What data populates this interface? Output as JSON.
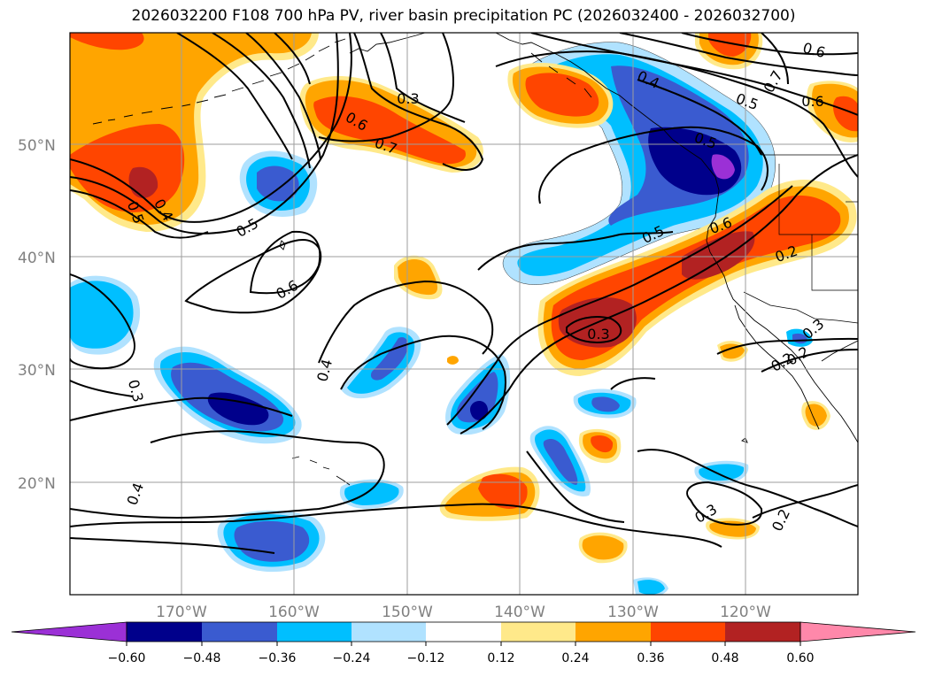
{
  "title": "2026032200 F108 700 hPa PV, river basin precipitation PC (2026032400 - 2026032700)",
  "lat_labels": [
    "50°N",
    "40°N",
    "30°N",
    "20°N"
  ],
  "lon_labels": [
    "170°W",
    "160°W",
    "150°W",
    "140°W",
    "130°W",
    "120°W"
  ],
  "contour_labels": [
    "0.3",
    "0.6",
    "0.7",
    "0.4",
    "0.5",
    "0.6",
    "0.5",
    "0.7",
    "0.6",
    "0.5",
    "0.4",
    "0.5",
    "0.6",
    "0.5",
    "0.6",
    "0.2",
    "0.3",
    "0.4",
    "0.3",
    "0.4",
    "0.3",
    "0.3",
    "0.2",
    "0.2",
    "0.2"
  ],
  "colorbar": {
    "ticks": [
      "−0.60",
      "−0.48",
      "−0.36",
      "−0.24",
      "−0.12",
      "0.12",
      "0.24",
      "0.36",
      "0.48",
      "0.60"
    ],
    "colors": [
      "#9b30d6",
      "#00008b",
      "#3a5bd0",
      "#00bfff",
      "#b0e2ff",
      "#ffffff",
      "#ffe98a",
      "#ffa500",
      "#ff4500",
      "#b22222",
      "#ff88aa"
    ]
  },
  "palette": {
    "neg_extreme": "#9b30d6",
    "neg_060": "#00008b",
    "neg_048": "#3a5bd0",
    "neg_036": "#00bfff",
    "neg_024": "#b0e2ff",
    "pos_012": "#ffe98a",
    "pos_024": "#ffa500",
    "pos_036": "#ff4500",
    "pos_048": "#b22222",
    "pos_extreme": "#ff88aa"
  }
}
